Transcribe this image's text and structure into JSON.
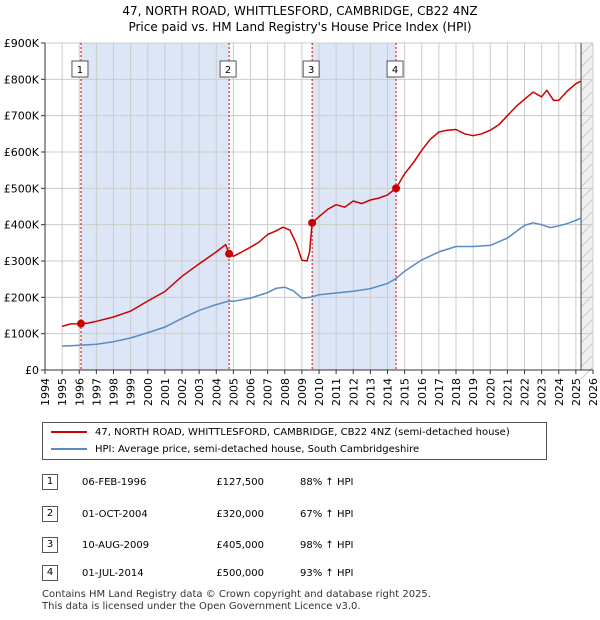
{
  "title_line1": "47, NORTH ROAD, WHITTLESFORD, CAMBRIDGE, CB22 4NZ",
  "title_line2": "Price paid vs. HM Land Registry's House Price Index (HPI)",
  "colors": {
    "property": "#cc0000",
    "hpi": "#5a8ac6",
    "shade": "#dde6f6",
    "grid": "#cccccc",
    "marker_dash": "#cc0000"
  },
  "chart_data": {
    "type": "line",
    "title": "47, NORTH ROAD, WHITTLESFORD, CAMBRIDGE, CB22 4NZ — Price paid vs. HM Land Registry's House Price Index (HPI)",
    "xlim": [
      1994,
      2026
    ],
    "ylim": [
      0,
      900000
    ],
    "x_ticks": [
      "1994",
      "1995",
      "1996",
      "1997",
      "1998",
      "1999",
      "2000",
      "2001",
      "2002",
      "2003",
      "2004",
      "2005",
      "2006",
      "2007",
      "2008",
      "2009",
      "2010",
      "2011",
      "2012",
      "2013",
      "2014",
      "2015",
      "2016",
      "2017",
      "2018",
      "2019",
      "2020",
      "2021",
      "2022",
      "2023",
      "2024",
      "2025",
      "2026"
    ],
    "y_ticks": [
      {
        "value": 0,
        "label": "£0"
      },
      {
        "value": 100000,
        "label": "£100K"
      },
      {
        "value": 200000,
        "label": "£200K"
      },
      {
        "value": 300000,
        "label": "£300K"
      },
      {
        "value": 400000,
        "label": "£400K"
      },
      {
        "value": 500000,
        "label": "£500K"
      },
      {
        "value": 600000,
        "label": "£600K"
      },
      {
        "value": 700000,
        "label": "£700K"
      },
      {
        "value": 800000,
        "label": "£800K"
      },
      {
        "value": 900000,
        "label": "£900K"
      }
    ],
    "data_start": 1995.0,
    "data_end": 2025.3,
    "shade_bands": [
      [
        1996.1,
        2004.75
      ],
      [
        2009.6,
        2014.5
      ]
    ],
    "series": [
      {
        "name": "47, NORTH ROAD, WHITTLESFORD, CAMBRIDGE, CB22 4NZ (semi-detached house)",
        "role": "property",
        "points": [
          [
            1995.0,
            120000
          ],
          [
            1995.5,
            127000
          ],
          [
            1996.1,
            127500
          ],
          [
            1996.5,
            129000
          ],
          [
            1997,
            134000
          ],
          [
            1998,
            146000
          ],
          [
            1999,
            162000
          ],
          [
            2000,
            190000
          ],
          [
            2001,
            216000
          ],
          [
            2002,
            258000
          ],
          [
            2003,
            292000
          ],
          [
            2004,
            325000
          ],
          [
            2004.55,
            345000
          ],
          [
            2004.75,
            320000
          ],
          [
            2005,
            313000
          ],
          [
            2005.5,
            325000
          ],
          [
            2006,
            338000
          ],
          [
            2006.5,
            352000
          ],
          [
            2007,
            373000
          ],
          [
            2007.5,
            383000
          ],
          [
            2007.9,
            393000
          ],
          [
            2008.3,
            385000
          ],
          [
            2008.7,
            345000
          ],
          [
            2009.0,
            302000
          ],
          [
            2009.3,
            300000
          ],
          [
            2009.45,
            325000
          ],
          [
            2009.6,
            405000
          ],
          [
            2010,
            422000
          ],
          [
            2010.5,
            442000
          ],
          [
            2011,
            455000
          ],
          [
            2011.5,
            448000
          ],
          [
            2012,
            465000
          ],
          [
            2012.5,
            458000
          ],
          [
            2013,
            468000
          ],
          [
            2013.5,
            473000
          ],
          [
            2014,
            482000
          ],
          [
            2014.5,
            500000
          ],
          [
            2015,
            540000
          ],
          [
            2015.5,
            570000
          ],
          [
            2016,
            605000
          ],
          [
            2016.5,
            635000
          ],
          [
            2017,
            655000
          ],
          [
            2017.5,
            660000
          ],
          [
            2018,
            662000
          ],
          [
            2018.5,
            650000
          ],
          [
            2019,
            645000
          ],
          [
            2019.5,
            650000
          ],
          [
            2020,
            660000
          ],
          [
            2020.5,
            675000
          ],
          [
            2021,
            700000
          ],
          [
            2021.5,
            725000
          ],
          [
            2022,
            745000
          ],
          [
            2022.5,
            765000
          ],
          [
            2023,
            752000
          ],
          [
            2023.3,
            770000
          ],
          [
            2023.7,
            742000
          ],
          [
            2024,
            742000
          ],
          [
            2024.5,
            768000
          ],
          [
            2025,
            788000
          ],
          [
            2025.3,
            795000
          ]
        ]
      },
      {
        "name": "HPI: Average price, semi-detached house, South Cambridgeshire",
        "role": "hpi",
        "points": [
          [
            1995.0,
            66000
          ],
          [
            1995.5,
            67000
          ],
          [
            1996,
            68000
          ],
          [
            1997,
            71000
          ],
          [
            1998,
            78000
          ],
          [
            1999,
            88000
          ],
          [
            2000,
            103000
          ],
          [
            2001,
            118000
          ],
          [
            2002,
            142000
          ],
          [
            2003,
            164000
          ],
          [
            2004,
            180000
          ],
          [
            2004.75,
            190000
          ],
          [
            2005,
            189000
          ],
          [
            2006,
            198000
          ],
          [
            2007,
            213000
          ],
          [
            2007.5,
            225000
          ],
          [
            2008,
            228000
          ],
          [
            2008.5,
            218000
          ],
          [
            2009,
            198000
          ],
          [
            2009.5,
            200000
          ],
          [
            2010,
            207000
          ],
          [
            2011,
            212000
          ],
          [
            2012,
            217000
          ],
          [
            2013,
            224000
          ],
          [
            2014,
            238000
          ],
          [
            2014.5,
            252000
          ],
          [
            2015,
            272000
          ],
          [
            2016,
            303000
          ],
          [
            2017,
            325000
          ],
          [
            2018,
            340000
          ],
          [
            2019,
            340000
          ],
          [
            2020,
            343000
          ],
          [
            2021,
            363000
          ],
          [
            2022,
            398000
          ],
          [
            2022.5,
            405000
          ],
          [
            2023,
            400000
          ],
          [
            2023.5,
            392000
          ],
          [
            2024,
            397000
          ],
          [
            2024.5,
            403000
          ],
          [
            2025,
            412000
          ],
          [
            2025.3,
            418000
          ]
        ]
      }
    ],
    "transactions": [
      {
        "id": "1",
        "date": "06-FEB-1996",
        "x": 1996.1,
        "price": 127500,
        "price_label": "£127,500",
        "hpi_change": "88% ↑ HPI"
      },
      {
        "id": "2",
        "date": "01-OCT-2004",
        "x": 2004.75,
        "price": 320000,
        "price_label": "£320,000",
        "hpi_change": "67% ↑ HPI"
      },
      {
        "id": "3",
        "date": "10-AUG-2009",
        "x": 2009.6,
        "price": 405000,
        "price_label": "£405,000",
        "hpi_change": "98% ↑ HPI"
      },
      {
        "id": "4",
        "date": "01-JUL-2014",
        "x": 2014.5,
        "price": 500000,
        "price_label": "£500,000",
        "hpi_change": "93% ↑ HPI"
      }
    ]
  },
  "legend": {
    "property_label": "47, NORTH ROAD, WHITTLESFORD, CAMBRIDGE, CB22 4NZ (semi-detached house)",
    "hpi_label": "HPI: Average price, semi-detached house, South Cambridgeshire"
  },
  "footer": {
    "line1": "Contains HM Land Registry data © Crown copyright and database right 2025.",
    "line2": "This data is licensed under the Open Government Licence v3.0."
  }
}
